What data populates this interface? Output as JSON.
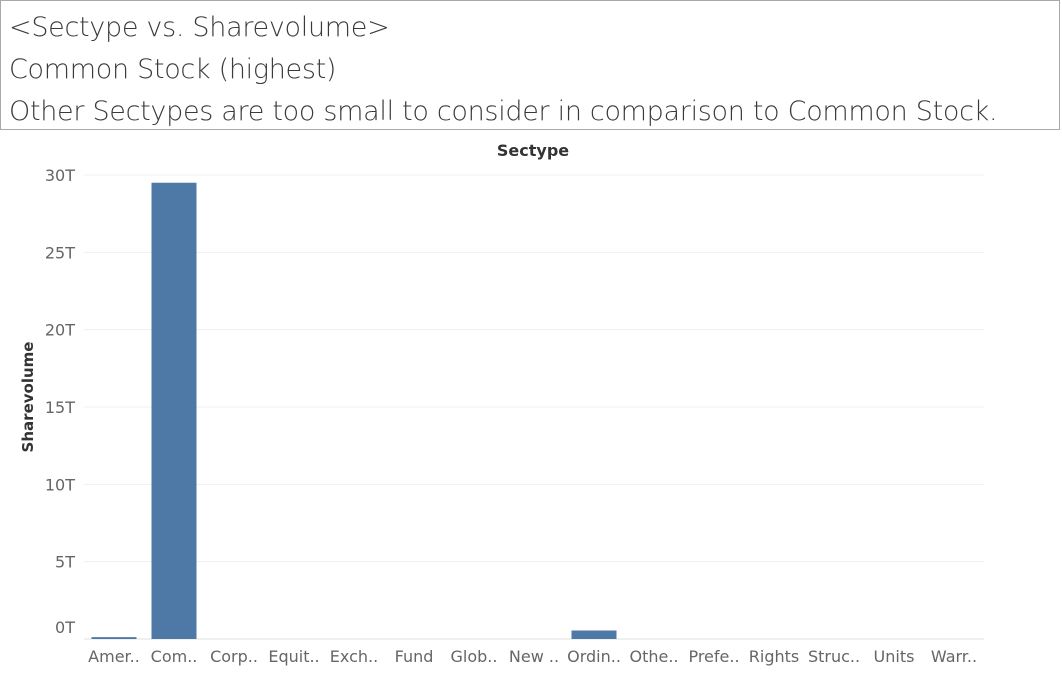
{
  "caption": {
    "lines": [
      "<Sectype vs. Sharevolume>",
      "Common Stock (highest)",
      "Other Sectypes are too small to consider in comparison to Common Stock."
    ]
  },
  "colors": {
    "bar": "#4e79a7",
    "grid": "#efefef",
    "axis_text": "#666666",
    "header_text": "#333333"
  },
  "chart_data": {
    "type": "bar",
    "column_header": "Sectype",
    "ylabel": "Sharevolume",
    "ylim": [
      0,
      30
    ],
    "y_unit": "T",
    "y_ticks": [
      "0T",
      "5T",
      "10T",
      "15T",
      "20T",
      "25T",
      "30T"
    ],
    "y_tick_values": [
      0,
      5,
      10,
      15,
      20,
      25,
      30
    ],
    "categories": [
      "Amer..",
      "Com..",
      "Corp..",
      "Equit..",
      "Exch..",
      "Fund",
      "Glob..",
      "New ..",
      "Ordin..",
      "Othe..",
      "Prefe..",
      "Rights",
      "Struc..",
      "Units",
      "Warr.."
    ],
    "values": [
      0.12,
      29.5,
      0.0,
      0.0,
      0.0,
      0.0,
      0.0,
      0.0,
      0.55,
      0.0,
      0.0,
      0.0,
      0.0,
      0.0,
      0.0
    ]
  }
}
